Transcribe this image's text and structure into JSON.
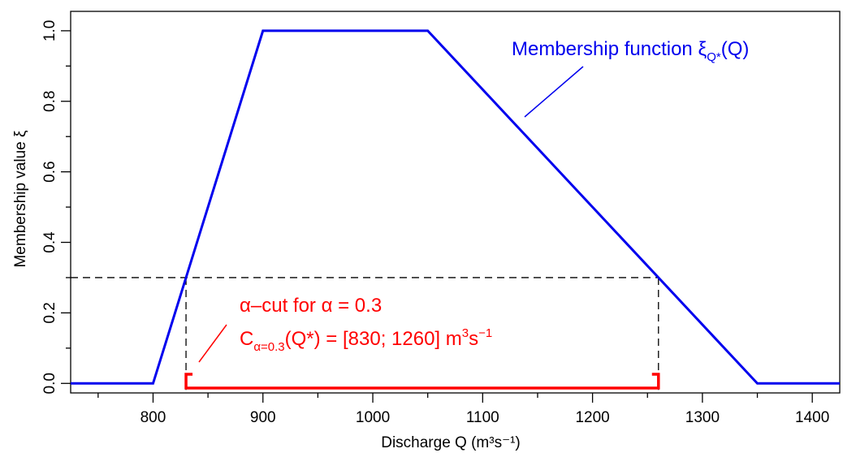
{
  "chart_data": {
    "type": "line",
    "xlabel": "Discharge Q (m³s⁻¹)",
    "ylabel": "Membership value ξ",
    "xlim": [
      725,
      1425
    ],
    "ylim": [
      -0.027,
      1.055
    ],
    "x_ticks": [
      800,
      900,
      1000,
      1100,
      1200,
      1300,
      1400
    ],
    "x_tick_labels": [
      "800",
      "900",
      "1000",
      "1100",
      "1200",
      "1300",
      "1400"
    ],
    "x_minor_ticks": [
      750,
      850,
      950,
      1050,
      1150,
      1250,
      1350
    ],
    "y_ticks": [
      0.0,
      0.2,
      0.4,
      0.6,
      0.8,
      1.0
    ],
    "y_tick_labels": [
      "0.0",
      "0.2",
      "0.4",
      "0.6",
      "0.8",
      "1.0"
    ],
    "y_minor_ticks": [
      0.1,
      0.3,
      0.5,
      0.7,
      0.9
    ],
    "grid": false,
    "series": [
      {
        "color": "#0000ee",
        "x": [
          725,
          800,
          900,
          1050,
          1350,
          1425
        ],
        "y": [
          0,
          0,
          1,
          1,
          0,
          0
        ]
      }
    ],
    "alpha_cut": {
      "alpha": 0.3,
      "lower": 830,
      "upper": 1260,
      "color": "#ff0000"
    },
    "annotations": {
      "membership_label": "Membership function ξ",
      "membership_sub": "Q*",
      "membership_tail": "(Q)",
      "alpha_line1": "α–cut for α = 0.3",
      "alpha_line2_main": "C",
      "alpha_line2_sub": "α=0.3",
      "alpha_line2_tail": "(Q*) = [830; 1260] m",
      "alpha_line2_sup1": "3",
      "alpha_line2_s": "s",
      "alpha_line2_sup2": "−1"
    }
  }
}
